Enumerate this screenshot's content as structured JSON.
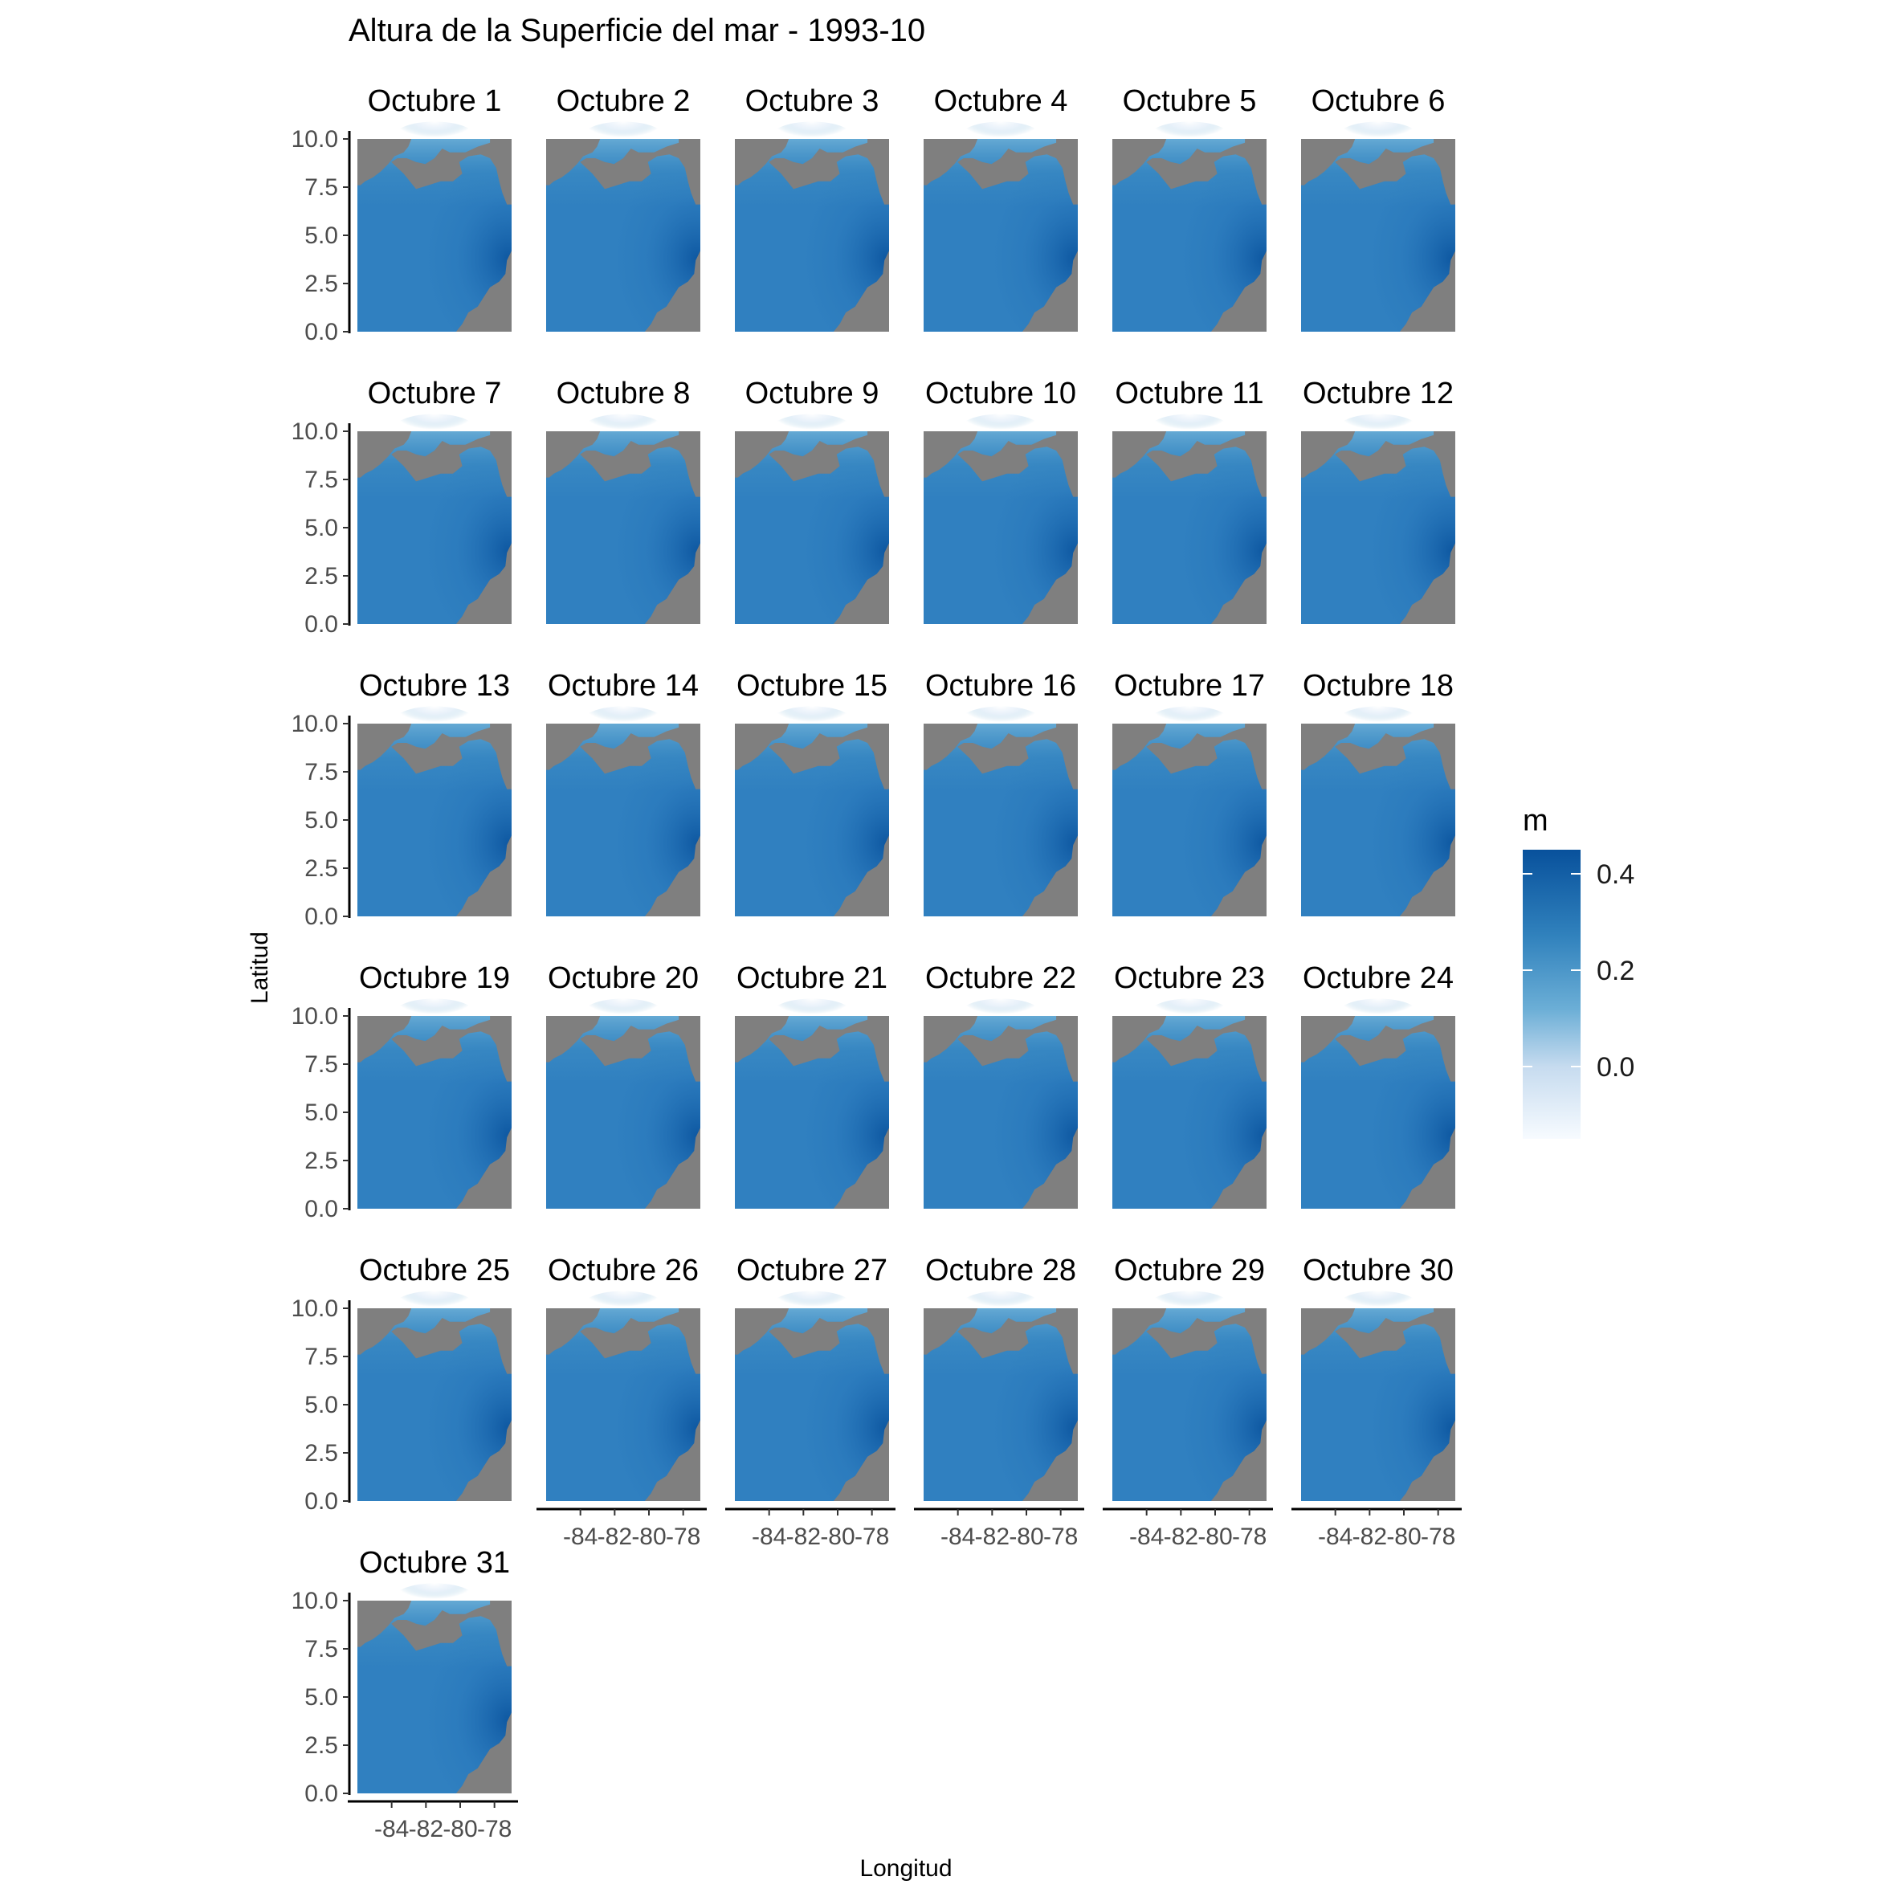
{
  "chart_data": {
    "type": "heatmap",
    "title": "Altura de la Superficie del mar - 1993-10",
    "xlabel": "Longitud",
    "ylabel": "Latitud",
    "panels": [
      "Octubre 1",
      "Octubre 2",
      "Octubre 3",
      "Octubre 4",
      "Octubre 5",
      "Octubre 6",
      "Octubre 7",
      "Octubre 8",
      "Octubre 9",
      "Octubre 10",
      "Octubre 11",
      "Octubre 12",
      "Octubre 13",
      "Octubre 14",
      "Octubre 15",
      "Octubre 16",
      "Octubre 17",
      "Octubre 18",
      "Octubre 19",
      "Octubre 20",
      "Octubre 21",
      "Octubre 22",
      "Octubre 23",
      "Octubre 24",
      "Octubre 25",
      "Octubre 26",
      "Octubre 27",
      "Octubre 28",
      "Octubre 29",
      "Octubre 30",
      "Octubre 31"
    ],
    "ncol": 6,
    "xlim": [
      -86,
      -77
    ],
    "ylim": [
      0,
      10
    ],
    "x_ticks": [
      -84,
      -82,
      -80,
      -78
    ],
    "x_tick_labels": [
      "-84",
      "-82",
      "-80",
      "-78"
    ],
    "y_ticks": [
      0,
      2.5,
      5,
      7.5,
      10
    ],
    "y_tick_labels": [
      "0.0",
      "2.5",
      "5.0",
      "7.5",
      "10.0"
    ],
    "land_color": "#7f7f7f",
    "colorbar": {
      "title": "m",
      "range": [
        -0.15,
        0.45
      ],
      "ticks": [
        0.0,
        0.2,
        0.4
      ],
      "tick_labels": [
        "0.0",
        "0.2",
        "0.4"
      ],
      "low_color": "#f7fbff",
      "high_color": "#08519c"
    },
    "legend_position": "right",
    "grid": false
  }
}
